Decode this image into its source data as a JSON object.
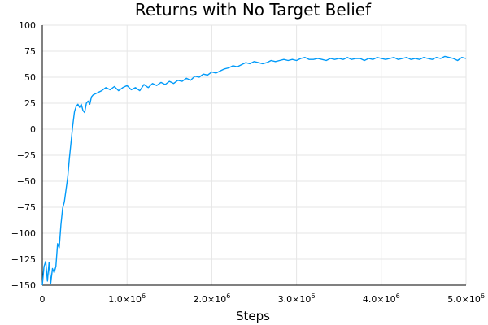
{
  "chart_data": {
    "type": "line",
    "title": "Returns with No Target Belief",
    "xlabel": "Steps",
    "ylabel": "",
    "xlim": [
      0,
      5000000
    ],
    "ylim": [
      -150,
      100
    ],
    "grid": true,
    "legend": "none",
    "x_ticks": [
      {
        "value": 0,
        "label": "0",
        "exp": ""
      },
      {
        "value": 1000000,
        "label": "1.0×10",
        "exp": "6"
      },
      {
        "value": 2000000,
        "label": "2.0×10",
        "exp": "6"
      },
      {
        "value": 3000000,
        "label": "3.0×10",
        "exp": "6"
      },
      {
        "value": 4000000,
        "label": "4.0×10",
        "exp": "6"
      },
      {
        "value": 5000000,
        "label": "5.0×10",
        "exp": "6"
      }
    ],
    "y_ticks": [
      {
        "value": 100,
        "label": "100"
      },
      {
        "value": 75,
        "label": "75"
      },
      {
        "value": 50,
        "label": "50"
      },
      {
        "value": 25,
        "label": "25"
      },
      {
        "value": 0,
        "label": "0"
      },
      {
        "value": -25,
        "label": "−25"
      },
      {
        "value": -50,
        "label": "−50"
      },
      {
        "value": -75,
        "label": "−75"
      },
      {
        "value": -100,
        "label": "−100"
      },
      {
        "value": -125,
        "label": "−125"
      },
      {
        "value": -150,
        "label": "−150"
      }
    ],
    "series": [
      {
        "color": "#009af9",
        "points": [
          [
            0,
            -150
          ],
          [
            20000,
            -132
          ],
          [
            40000,
            -127
          ],
          [
            60000,
            -146
          ],
          [
            80000,
            -128
          ],
          [
            100000,
            -148
          ],
          [
            120000,
            -134
          ],
          [
            140000,
            -138
          ],
          [
            160000,
            -132
          ],
          [
            180000,
            -110
          ],
          [
            200000,
            -114
          ],
          [
            220000,
            -92
          ],
          [
            240000,
            -76
          ],
          [
            260000,
            -70
          ],
          [
            280000,
            -58
          ],
          [
            300000,
            -46
          ],
          [
            320000,
            -28
          ],
          [
            340000,
            -12
          ],
          [
            360000,
            4
          ],
          [
            380000,
            17
          ],
          [
            400000,
            22
          ],
          [
            420000,
            24
          ],
          [
            440000,
            21
          ],
          [
            460000,
            24
          ],
          [
            480000,
            18
          ],
          [
            500000,
            16
          ],
          [
            520000,
            25
          ],
          [
            540000,
            27
          ],
          [
            560000,
            24
          ],
          [
            580000,
            31
          ],
          [
            600000,
            33
          ],
          [
            650000,
            35
          ],
          [
            700000,
            37
          ],
          [
            750000,
            40
          ],
          [
            800000,
            38
          ],
          [
            850000,
            41
          ],
          [
            900000,
            37
          ],
          [
            950000,
            40
          ],
          [
            1000000,
            42
          ],
          [
            1050000,
            38
          ],
          [
            1100000,
            40
          ],
          [
            1150000,
            37
          ],
          [
            1200000,
            43
          ],
          [
            1250000,
            40
          ],
          [
            1300000,
            44
          ],
          [
            1350000,
            42
          ],
          [
            1400000,
            45
          ],
          [
            1450000,
            43
          ],
          [
            1500000,
            46
          ],
          [
            1550000,
            44
          ],
          [
            1600000,
            47
          ],
          [
            1650000,
            46
          ],
          [
            1700000,
            49
          ],
          [
            1750000,
            47
          ],
          [
            1800000,
            51
          ],
          [
            1850000,
            50
          ],
          [
            1900000,
            53
          ],
          [
            1950000,
            52
          ],
          [
            2000000,
            55
          ],
          [
            2050000,
            54
          ],
          [
            2100000,
            56
          ],
          [
            2150000,
            58
          ],
          [
            2200000,
            59
          ],
          [
            2250000,
            61
          ],
          [
            2300000,
            60
          ],
          [
            2350000,
            62
          ],
          [
            2400000,
            64
          ],
          [
            2450000,
            63
          ],
          [
            2500000,
            65
          ],
          [
            2550000,
            64
          ],
          [
            2600000,
            63
          ],
          [
            2650000,
            64
          ],
          [
            2700000,
            66
          ],
          [
            2750000,
            65
          ],
          [
            2800000,
            66
          ],
          [
            2850000,
            67
          ],
          [
            2900000,
            66
          ],
          [
            2950000,
            67
          ],
          [
            3000000,
            66
          ],
          [
            3050000,
            68
          ],
          [
            3100000,
            69
          ],
          [
            3150000,
            67
          ],
          [
            3200000,
            67
          ],
          [
            3250000,
            68
          ],
          [
            3300000,
            67
          ],
          [
            3350000,
            66
          ],
          [
            3400000,
            68
          ],
          [
            3450000,
            67
          ],
          [
            3500000,
            68
          ],
          [
            3550000,
            67
          ],
          [
            3600000,
            69
          ],
          [
            3650000,
            67
          ],
          [
            3700000,
            68
          ],
          [
            3750000,
            68
          ],
          [
            3800000,
            66
          ],
          [
            3850000,
            68
          ],
          [
            3900000,
            67
          ],
          [
            3950000,
            69
          ],
          [
            4000000,
            68
          ],
          [
            4050000,
            67
          ],
          [
            4100000,
            68
          ],
          [
            4150000,
            69
          ],
          [
            4200000,
            67
          ],
          [
            4250000,
            68
          ],
          [
            4300000,
            69
          ],
          [
            4350000,
            67
          ],
          [
            4400000,
            68
          ],
          [
            4450000,
            67
          ],
          [
            4500000,
            69
          ],
          [
            4550000,
            68
          ],
          [
            4600000,
            67
          ],
          [
            4650000,
            69
          ],
          [
            4700000,
            68
          ],
          [
            4750000,
            70
          ],
          [
            4800000,
            69
          ],
          [
            4850000,
            68
          ],
          [
            4900000,
            66
          ],
          [
            4950000,
            69
          ],
          [
            5000000,
            68
          ]
        ]
      }
    ]
  }
}
